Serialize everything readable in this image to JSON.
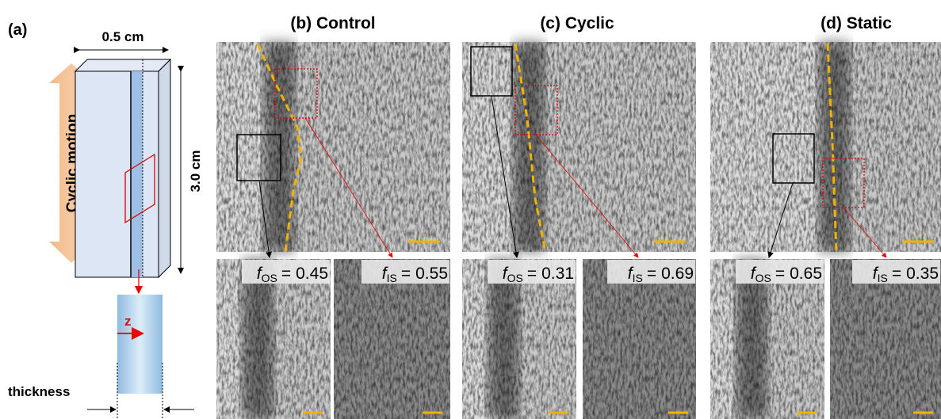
{
  "panel_a": {
    "label": "(a)",
    "width_label": "0.5 cm",
    "height_label": "3.0 cm",
    "motion_label": "Cyclic motion",
    "axis_label": "z",
    "thickness_label": "thickness"
  },
  "panels": [
    {
      "label": "(b) Control",
      "insets": [
        {
          "symbol": "f",
          "subscript": "OS",
          "relation": "=",
          "value": 0.45
        },
        {
          "symbol": "f",
          "subscript": "IS",
          "relation": "=",
          "value": 0.55
        }
      ]
    },
    {
      "label": "(c) Cyclic",
      "insets": [
        {
          "symbol": "f",
          "subscript": "OS",
          "relation": "=",
          "value": 0.31
        },
        {
          "symbol": "f",
          "subscript": "IS",
          "relation": "=",
          "value": 0.69
        }
      ]
    },
    {
      "label": "(d) Static",
      "insets": [
        {
          "symbol": "f",
          "subscript": "OS",
          "relation": "=",
          "value": 0.65
        },
        {
          "symbol": "f",
          "subscript": "IS",
          "relation": "=",
          "value": 0.35
        }
      ]
    }
  ]
}
